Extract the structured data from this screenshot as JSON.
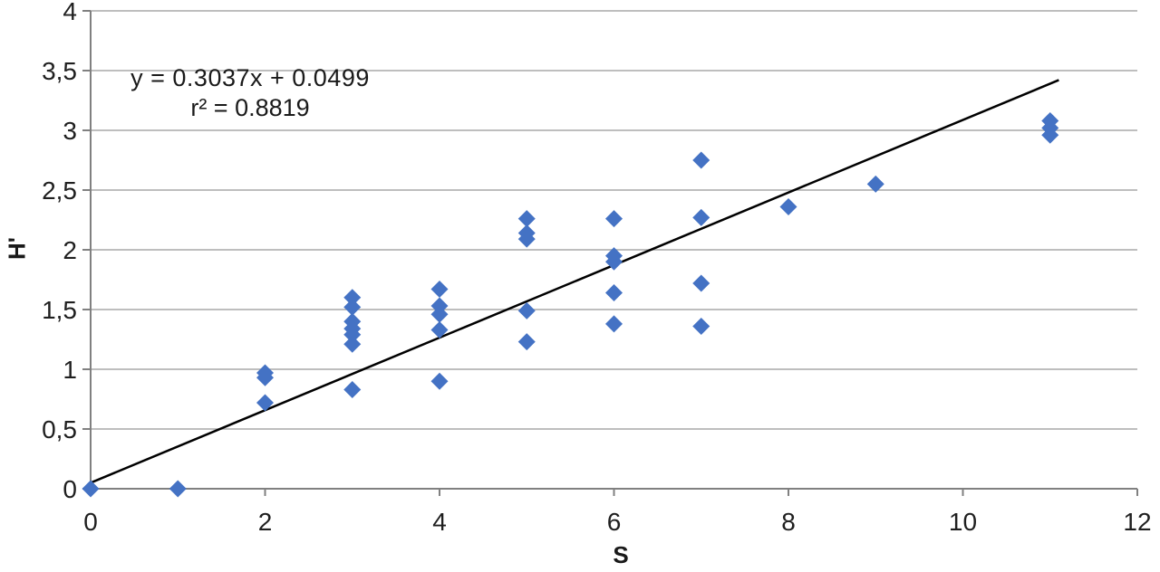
{
  "colors": {
    "background": "#ffffff",
    "marker": "#4472C4",
    "trendline": "#000000",
    "gridline": "#A8A8A8",
    "axis": "#808080",
    "text": "#1f1f1f"
  },
  "chart_data": {
    "type": "scatter",
    "title": "",
    "xlabel": "S",
    "ylabel": "H'",
    "xlim": [
      0,
      12
    ],
    "ylim": [
      0,
      4
    ],
    "x_ticks": [
      0,
      2,
      4,
      6,
      8,
      10,
      12
    ],
    "x_tick_labels": [
      "0",
      "2",
      "4",
      "6",
      "8",
      "10",
      "12"
    ],
    "y_ticks": [
      0,
      0.5,
      1,
      1.5,
      2,
      2.5,
      3,
      3.5,
      4
    ],
    "y_tick_labels": [
      "0",
      "0,5",
      "1",
      "1,5",
      "2",
      "2,5",
      "3",
      "3,5",
      "4"
    ],
    "decimal_separator": ",",
    "grid": "horizontal",
    "legend": "none",
    "marker": {
      "shape": "diamond",
      "color": "#4472C4",
      "size": 19
    },
    "trendline": {
      "slope": 0.3037,
      "intercept": 0.0499,
      "x_start": 0,
      "x_end": 11.1,
      "color": "#000000",
      "equation": "y = 0.3037x + 0.0499",
      "r_squared_label": "r² = 0.8819"
    },
    "points": [
      [
        0,
        0.0
      ],
      [
        1,
        0.0
      ],
      [
        2,
        0.97
      ],
      [
        2,
        0.93
      ],
      [
        2,
        0.72
      ],
      [
        3,
        1.6
      ],
      [
        3,
        1.52
      ],
      [
        3,
        1.4
      ],
      [
        3,
        1.34
      ],
      [
        3,
        1.29
      ],
      [
        3,
        1.21
      ],
      [
        3,
        0.83
      ],
      [
        4,
        1.67
      ],
      [
        4,
        1.53
      ],
      [
        4,
        1.46
      ],
      [
        4,
        1.33
      ],
      [
        4,
        0.9
      ],
      [
        5,
        2.26
      ],
      [
        5,
        2.14
      ],
      [
        5,
        2.09
      ],
      [
        5,
        1.49
      ],
      [
        5,
        1.23
      ],
      [
        6,
        2.26
      ],
      [
        6,
        1.95
      ],
      [
        6,
        1.9
      ],
      [
        6,
        1.64
      ],
      [
        6,
        1.38
      ],
      [
        7,
        2.75
      ],
      [
        7,
        2.27
      ],
      [
        7,
        1.72
      ],
      [
        7,
        1.36
      ],
      [
        8,
        2.36
      ],
      [
        9,
        2.55
      ],
      [
        11,
        3.08
      ],
      [
        11,
        3.02
      ],
      [
        11,
        2.96
      ]
    ]
  }
}
